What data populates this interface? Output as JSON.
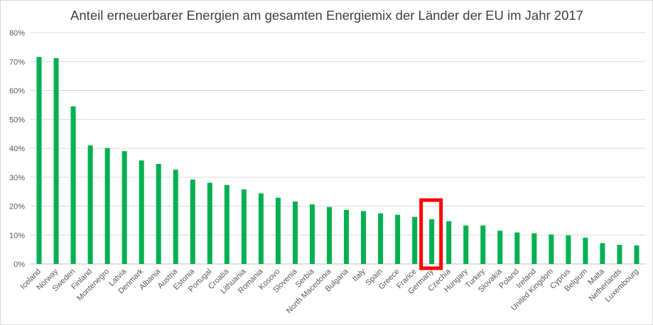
{
  "chart_data": {
    "type": "bar",
    "title": "Anteil erneuerbarer Energien am gesamten Energiemix der Länder der EU im Jahr 2017",
    "xlabel": "",
    "ylabel": "",
    "ylim": [
      0,
      80
    ],
    "y_tick_values": [
      0,
      10,
      20,
      30,
      40,
      50,
      60,
      70,
      80
    ],
    "y_tick_labels": [
      "0%",
      "10%",
      "20%",
      "30%",
      "40%",
      "50%",
      "60%",
      "70%",
      "80%"
    ],
    "grid": true,
    "legend": "none",
    "bar_color": "#00b050",
    "highlight_color": "#ff0000",
    "highlight_category": "Germany",
    "categories": [
      "Iceland",
      "Norway",
      "Sweden",
      "Finland",
      "Montenegro",
      "Latvia",
      "Denmark",
      "Albania",
      "Austria",
      "Estonia",
      "Portugal",
      "Croatia",
      "Lithuania",
      "Romania",
      "Kosovo",
      "Slovenia",
      "Serbia",
      "North Macedonia",
      "Bulgaria",
      "Italy",
      "Spain",
      "Greece",
      "France",
      "Germany",
      "Czechia",
      "Hungary",
      "Turkey",
      "Slovakia",
      "Poland",
      "Ireland",
      "United Kingdom",
      "Cyprus",
      "Belgium",
      "Malta",
      "Netherlands",
      "Luxembourg"
    ],
    "values": [
      71.6,
      71.2,
      54.5,
      41.0,
      40.1,
      39.0,
      35.8,
      34.6,
      32.6,
      29.2,
      28.1,
      27.3,
      25.8,
      24.4,
      22.9,
      21.6,
      20.6,
      19.7,
      18.7,
      18.3,
      17.5,
      17.0,
      16.3,
      15.5,
      14.8,
      13.3,
      13.3,
      11.5,
      10.9,
      10.6,
      10.2,
      9.9,
      9.1,
      7.2,
      6.6,
      6.4
    ]
  }
}
